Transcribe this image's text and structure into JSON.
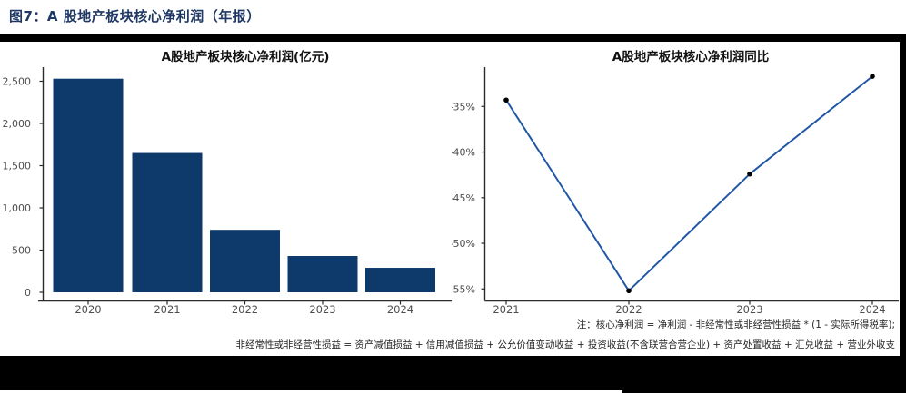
{
  "figure": {
    "caption": "图7：A 股地产板块核心净利润（年报）",
    "notes": {
      "line1": "注：核心净利润 = 净利润 - 非经常性或非经营性损益 * (1 - 实际所得税率);",
      "line2": "非经常性或非经营性损益 = 资产减值损益 + 信用减值损益 + 公允价值变动收益 + 投资收益(不含联营合营企业) + 资产处置收益 + 汇兑收益 + 营业外收支"
    }
  },
  "colors": {
    "caption_blue": "#1F3864",
    "bar_fill": "#0D3A6B",
    "line_stroke": "#2157A4",
    "marker_fill": "#000000",
    "axis_line": "#2B2B2B",
    "tick_label": "#4D4D4D",
    "chart_title": "#111111",
    "frame_black": "#000000",
    "note_text": "#262626"
  },
  "chart_data": [
    {
      "type": "bar",
      "title": "A股地产板块核心净利润(亿元)",
      "categories": [
        "2020",
        "2021",
        "2022",
        "2023",
        "2024"
      ],
      "values": [
        2530,
        1650,
        740,
        430,
        290
      ],
      "xlabel": "",
      "ylabel": "",
      "ylim": [
        0,
        2650
      ],
      "yticks": [
        0,
        500,
        1000,
        1500,
        2000,
        2500
      ],
      "ytick_labels": [
        "0",
        "500",
        "1,000",
        "1,500",
        "2,000",
        "2,500"
      ],
      "grid": false,
      "legend": "none"
    },
    {
      "type": "line",
      "title": "A股地产板块核心净利润同比",
      "categories": [
        "2021",
        "2022",
        "2023",
        "2024"
      ],
      "values": [
        -34.3,
        -55.2,
        -42.4,
        -31.7
      ],
      "xlabel": "",
      "ylabel": "",
      "ylim": [
        -56.3,
        -30.7
      ],
      "yticks": [
        -35,
        -40,
        -45,
        -50,
        -55
      ],
      "ytick_labels": [
        "-35%",
        "-40%",
        "-45%",
        "-50%",
        "-55%"
      ],
      "grid": false,
      "legend": "none"
    }
  ]
}
